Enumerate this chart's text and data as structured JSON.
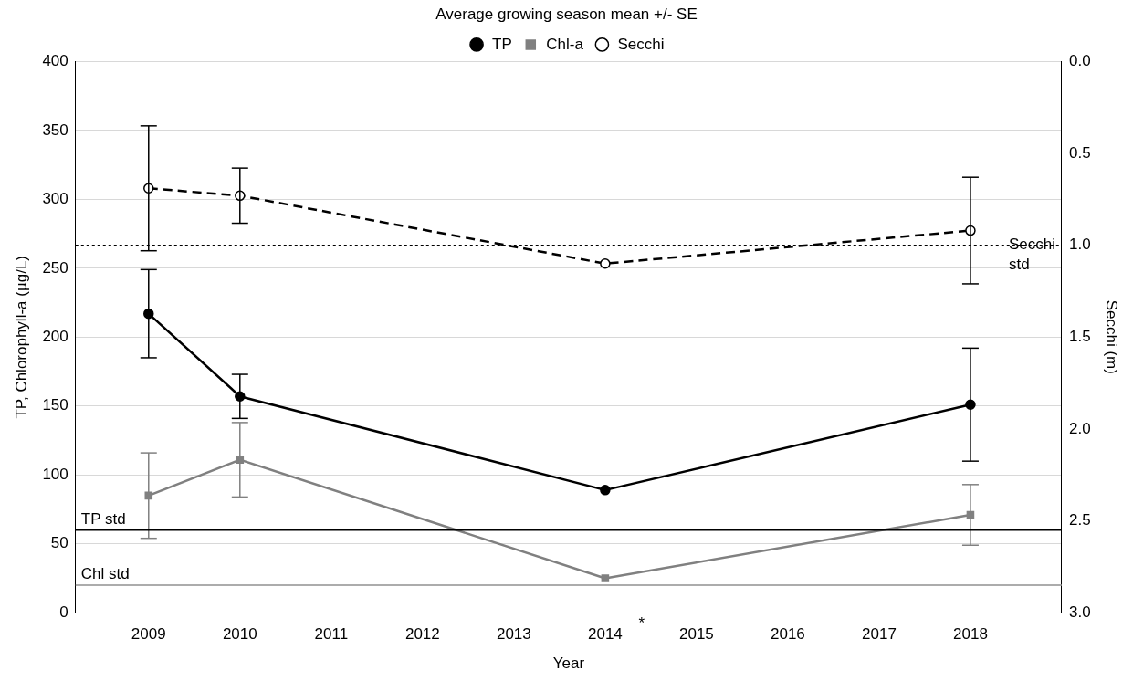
{
  "chart_data": {
    "type": "line",
    "title": "Average growing season mean +/- SE",
    "xlabel": "Year",
    "ylabel": "TP, Chlorophyll-a (µg/L)",
    "y2label": "Secchi (m)",
    "x": [
      2009,
      2010,
      2014,
      2018
    ],
    "series": [
      {
        "name": "TP",
        "color": "#000000",
        "values": [
          217,
          157,
          89,
          151
        ],
        "errors": [
          32,
          16,
          null,
          41
        ],
        "marker": "circle",
        "line_style": "solid"
      },
      {
        "name": "Chl-a",
        "color": "#808080",
        "values": [
          85,
          111,
          25,
          71
        ],
        "errors": [
          31,
          27,
          null,
          22
        ],
        "marker": "square",
        "line_style": "solid"
      },
      {
        "name": "Secchi",
        "color": "#000000",
        "values": [
          0.69,
          0.73,
          1.1,
          0.92
        ],
        "errors": [
          0.34,
          0.15,
          null,
          0.29
        ],
        "marker": "circle",
        "line_style": "dashed",
        "axis": "y2"
      }
    ],
    "xlim": [
      2008.2,
      2019
    ],
    "xticks": [
      2009,
      2010,
      2011,
      2012,
      2013,
      2014,
      2015,
      2016,
      2017,
      2018
    ],
    "ylim": [
      0,
      400
    ],
    "yticks": [
      0,
      50,
      100,
      150,
      200,
      250,
      300,
      350,
      400
    ],
    "y2lim": [
      3,
      0
    ],
    "y2ticks": [
      {
        "value": 0,
        "label": "0.0"
      },
      {
        "value": 0.5,
        "label": "0.5"
      },
      {
        "value": 1,
        "label": "1.0"
      },
      {
        "value": 1.5,
        "label": "1.5"
      },
      {
        "value": 2,
        "label": "2.0"
      },
      {
        "value": 2.5,
        "label": "2.5"
      },
      {
        "value": 3,
        "label": "3.0"
      }
    ],
    "ref_lines": [
      {
        "axis": "y",
        "value": 60,
        "label": "TP std",
        "color": "#000000",
        "line_style": "solid"
      },
      {
        "axis": "y",
        "value": 20,
        "label": "Chl std",
        "color": "#909090",
        "line_style": "solid"
      },
      {
        "axis": "y2",
        "value": 1,
        "label": "Secchi std",
        "color": "#000000",
        "line_style": "dotted"
      }
    ],
    "annotations": [
      "*"
    ],
    "grid": "y",
    "legend": "top"
  }
}
